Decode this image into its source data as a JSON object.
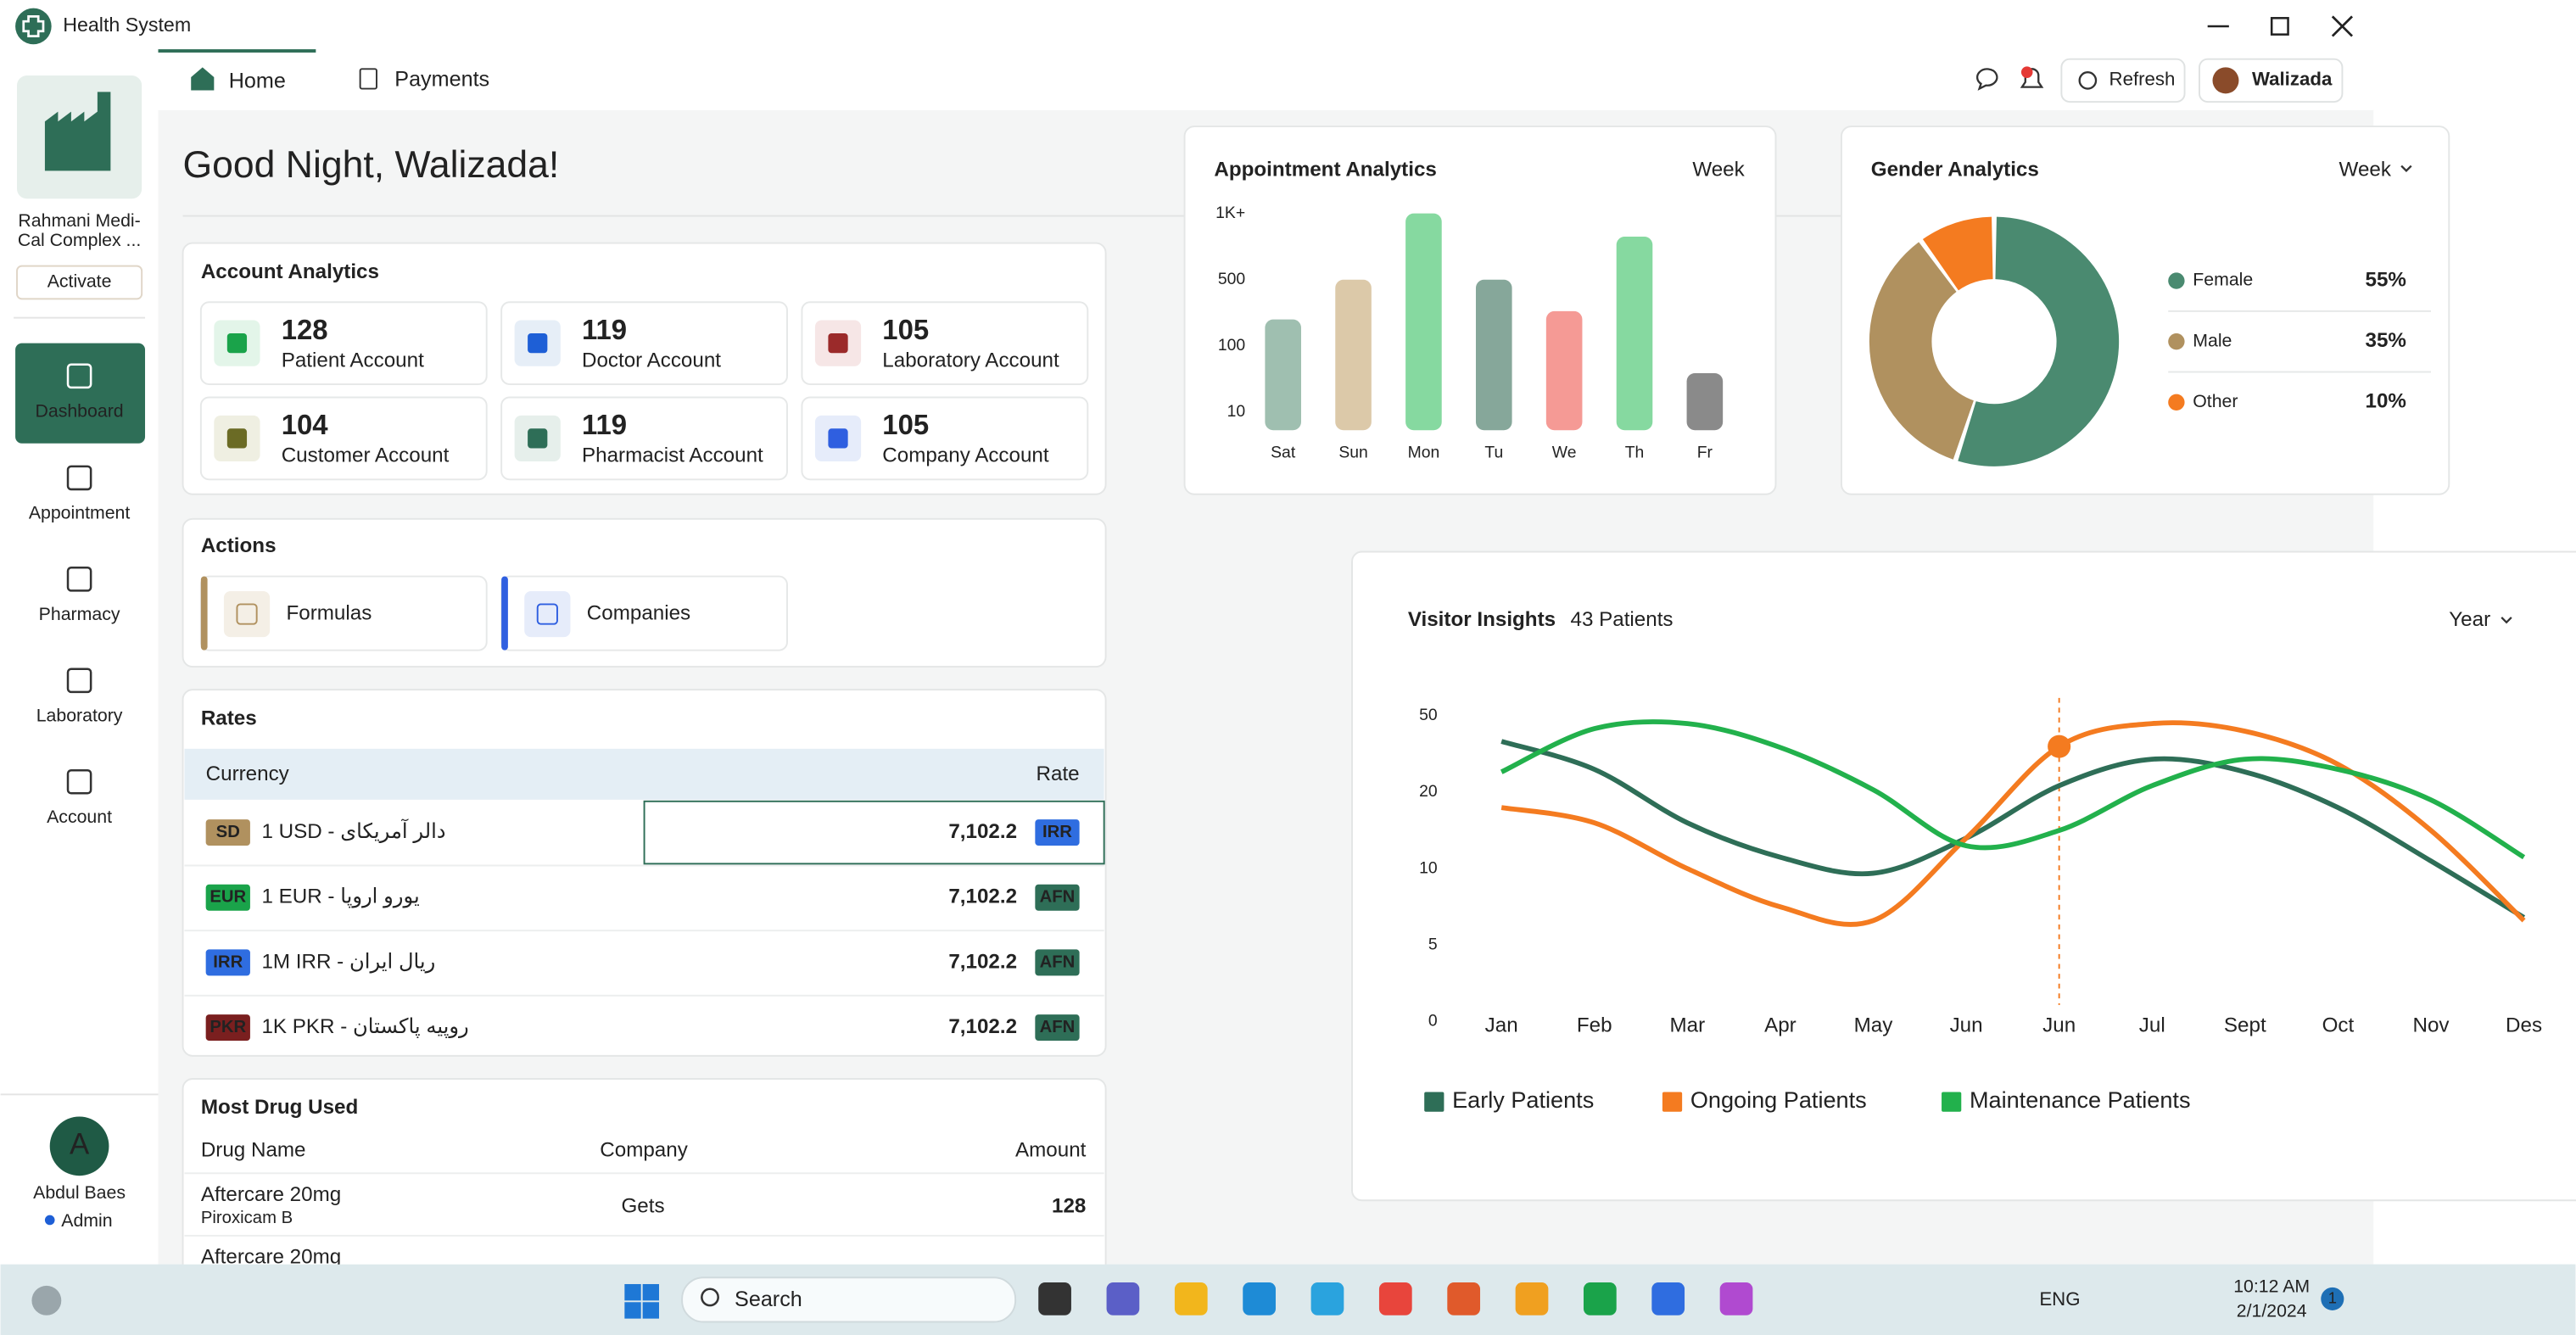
{
  "window": {
    "title": "Health System"
  },
  "tabs": [
    "Home",
    "Payments"
  ],
  "toolbar": {
    "refresh": "Refresh",
    "user": "Walizada"
  },
  "sidebar": {
    "org": [
      "Rahmani Medi-",
      "Cal Complex ..."
    ],
    "activate": "Activate",
    "nav": [
      "Dashboard",
      "Appointment",
      "Pharmacy",
      "Laboratory",
      "Account"
    ],
    "user": {
      "initial": "A",
      "name": "Abdul Baes",
      "role": "Admin"
    }
  },
  "greeting": "Good Night, Walizada!",
  "account_analytics": {
    "title": "Account Analytics",
    "cards": [
      {
        "count": 128,
        "label": "Patient Account"
      },
      {
        "count": 119,
        "label": "Doctor Account"
      },
      {
        "count": 105,
        "label": "Laboratory Account"
      },
      {
        "count": 104,
        "label": "Customer Account"
      },
      {
        "count": 119,
        "label": "Pharmacist Account"
      },
      {
        "count": 105,
        "label": "Company Account"
      }
    ]
  },
  "actions": {
    "title": "Actions",
    "items": [
      "Formulas",
      "Companies"
    ]
  },
  "rates": {
    "title": "Rates",
    "columns": [
      "Currency",
      "Rate"
    ],
    "rows": [
      {
        "badge": "SD",
        "currency": "1 USD - دالر آمریکای",
        "rate": "7,102.2",
        "unit": "IRR"
      },
      {
        "badge": "EUR",
        "currency": "1 EUR - یورو اروپا",
        "rate": "7,102.2",
        "unit": "AFN"
      },
      {
        "badge": "IRR",
        "currency": "1M IRR - ریال ایران",
        "rate": "7,102.2",
        "unit": "AFN"
      },
      {
        "badge": "PKR",
        "currency": "1K PKR - روپیه پاکستان",
        "rate": "7,102.2",
        "unit": "AFN"
      }
    ]
  },
  "drugs": {
    "title": "Most Drug Used",
    "columns": [
      "Drug Name",
      "Company",
      "Amount"
    ],
    "rows": [
      {
        "name": "Aftercare 20mg",
        "generic": "Piroxicam B",
        "company": "Gets",
        "amount": "128"
      },
      {
        "name": "Aftercare 20mg"
      }
    ]
  },
  "chart_data": [
    {
      "type": "bar",
      "title": "Appointment Analytics",
      "period": "Week",
      "categories": [
        "Sat",
        "Sun",
        "Mon",
        "Tu",
        "We",
        "Th",
        "Fr"
      ],
      "values": [
        260,
        500,
        1000,
        500,
        310,
        825,
        63
      ],
      "colors": [
        "#9fbfb0",
        "#dcc9a9",
        "#86d9a0",
        "#86a79a",
        "#f59a95",
        "#86d9a0",
        "#8a8a8a"
      ],
      "ylim": [
        0,
        1000
      ],
      "yticks": [
        10,
        100,
        500,
        {
          "value": 1000,
          "label": "1K+"
        }
      ]
    },
    {
      "type": "pie",
      "title": "Gender Analytics",
      "period": "Week",
      "categories": [
        "Female",
        "Male",
        "Other"
      ],
      "values": [
        55,
        35,
        10
      ],
      "value_labels": [
        "55%",
        "35%",
        "10%"
      ],
      "colors": [
        "#4a8a70",
        "#b0915f",
        "#f47b20"
      ]
    },
    {
      "type": "line",
      "title": "Visitor Insights",
      "subtitle": "43 Patients",
      "period": "Year",
      "categories": [
        "Jan",
        "Feb",
        "Mar",
        "Apr",
        "May",
        "Jun",
        "Jun",
        "Jul",
        "Sept",
        "Oct",
        "Nov",
        "Des"
      ],
      "series": [
        {
          "name": "Early Patients",
          "color": "#2e6e57",
          "values": [
            40,
            29,
            16,
            11.5,
            9.7,
            14,
            22.6,
            33,
            28,
            18,
            11,
            6.8
          ]
        },
        {
          "name": "Ongoing Patients",
          "color": "#f47b20",
          "values": [
            18,
            16,
            10,
            7.5,
            6.6,
            14,
            38,
            47,
            44,
            31,
            15,
            6.6
          ]
        },
        {
          "name": "Maintenance Patients",
          "color": "#22b14c",
          "values": [
            28,
            45,
            47,
            37.6,
            21,
            13,
            15,
            22.6,
            33,
            29,
            19,
            11.5
          ]
        }
      ],
      "ylim": [
        0,
        50
      ],
      "yticks": [
        0,
        5,
        10,
        20,
        50
      ]
    }
  ],
  "taskbar": {
    "search": "Search",
    "lang": "ENG",
    "time": "10:12 AM",
    "date": "2/1/2024",
    "badge": "1"
  }
}
